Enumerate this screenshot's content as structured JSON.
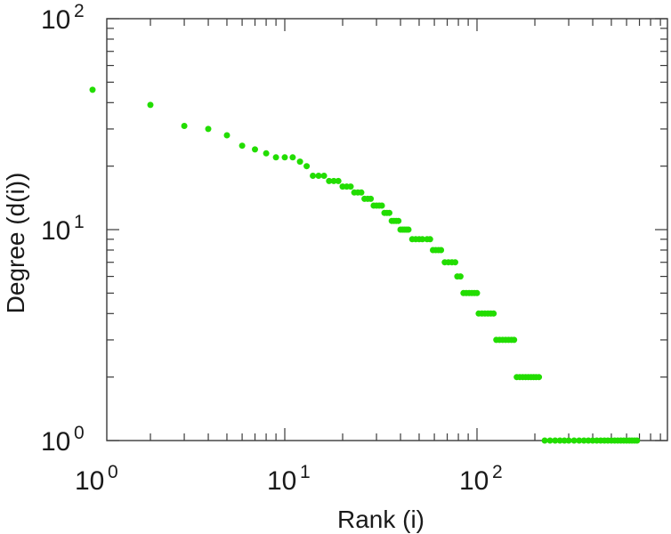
{
  "chart_data": {
    "type": "scatter",
    "xscale": "log",
    "yscale": "log",
    "xlim": [
      1,
      900
    ],
    "ylim": [
      1,
      100
    ],
    "xlabel": "Rank (i)",
    "ylabel": "Degree (d(i))",
    "grid": false,
    "marker_color": "#22dd00",
    "x_ticks": [
      {
        "base": "10",
        "exp": "0"
      },
      {
        "base": "10",
        "exp": "1"
      },
      {
        "base": "10",
        "exp": "2"
      }
    ],
    "y_ticks": [
      {
        "base": "10",
        "exp": "0"
      },
      {
        "base": "10",
        "exp": "1"
      },
      {
        "base": "10",
        "exp": "2"
      }
    ],
    "series": [
      {
        "points": [
          [
            1,
            46
          ],
          [
            2,
            39
          ],
          [
            3,
            31
          ],
          [
            4,
            30
          ],
          [
            5,
            28
          ],
          [
            6,
            25
          ],
          [
            7,
            24
          ],
          [
            8,
            23
          ],
          [
            9,
            22
          ],
          [
            10,
            22
          ],
          [
            11,
            22
          ],
          [
            12,
            21
          ],
          [
            13,
            20
          ],
          [
            14,
            18
          ],
          [
            15,
            18
          ],
          [
            16,
            18
          ],
          [
            17,
            17
          ],
          [
            18,
            17
          ],
          [
            19,
            17
          ],
          [
            20,
            16
          ],
          [
            21,
            16
          ],
          [
            22,
            16
          ],
          [
            23,
            15
          ],
          [
            24,
            15
          ],
          [
            25,
            15
          ],
          [
            26,
            14
          ],
          [
            27,
            14
          ],
          [
            28,
            14
          ],
          [
            29,
            13
          ],
          [
            30,
            13
          ],
          [
            31,
            13
          ],
          [
            32,
            13
          ],
          [
            33,
            12
          ],
          [
            34,
            12
          ],
          [
            35,
            12
          ],
          [
            36,
            11
          ],
          [
            37,
            11
          ],
          [
            38,
            11
          ],
          [
            39,
            11
          ],
          [
            40,
            10
          ],
          [
            41,
            10
          ],
          [
            42,
            10
          ],
          [
            43,
            10
          ],
          [
            44,
            10
          ],
          [
            46,
            9
          ],
          [
            48,
            9
          ],
          [
            50,
            9
          ],
          [
            52,
            9
          ],
          [
            55,
            9
          ],
          [
            57,
            9
          ],
          [
            59,
            8
          ],
          [
            61,
            8
          ],
          [
            63,
            8
          ],
          [
            65,
            8
          ],
          [
            68,
            7
          ],
          [
            71,
            7
          ],
          [
            74,
            7
          ],
          [
            77,
            7
          ],
          [
            79,
            6
          ],
          [
            82,
            6
          ],
          [
            85,
            5
          ],
          [
            88,
            5
          ],
          [
            91,
            5
          ],
          [
            94,
            5
          ],
          [
            97,
            5
          ],
          [
            100,
            5
          ],
          [
            102,
            4
          ],
          [
            106,
            4
          ],
          [
            110,
            4
          ],
          [
            114,
            4
          ],
          [
            118,
            4
          ],
          [
            122,
            4
          ],
          [
            126,
            3
          ],
          [
            131,
            3
          ],
          [
            136,
            3
          ],
          [
            141,
            3
          ],
          [
            146,
            3
          ],
          [
            151,
            3
          ],
          [
            156,
            3
          ],
          [
            161,
            2
          ],
          [
            167,
            2
          ],
          [
            173,
            2
          ],
          [
            179,
            2
          ],
          [
            185,
            2
          ],
          [
            191,
            2
          ],
          [
            197,
            2
          ],
          [
            203,
            2
          ],
          [
            210,
            2
          ],
          [
            225,
            1
          ],
          [
            240,
            1
          ],
          [
            255,
            1
          ],
          [
            270,
            1
          ],
          [
            285,
            1
          ],
          [
            300,
            1
          ],
          [
            320,
            1
          ],
          [
            340,
            1
          ],
          [
            360,
            1
          ],
          [
            380,
            1
          ],
          [
            400,
            1
          ],
          [
            420,
            1
          ],
          [
            440,
            1
          ],
          [
            460,
            1
          ],
          [
            480,
            1
          ],
          [
            500,
            1
          ],
          [
            520,
            1
          ],
          [
            540,
            1
          ],
          [
            560,
            1
          ],
          [
            580,
            1
          ],
          [
            600,
            1
          ],
          [
            620,
            1
          ],
          [
            640,
            1
          ],
          [
            660,
            1
          ],
          [
            680,
            1
          ]
        ]
      }
    ]
  }
}
